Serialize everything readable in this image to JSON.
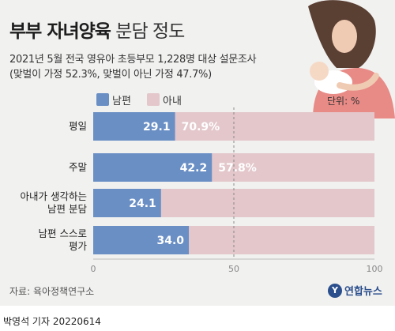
{
  "header": {
    "title_bold": "부부 자녀양육",
    "title_light": "분담 정도",
    "subtitle_line1": "2021년 5월 전국 영유아 초등부모 1,228명 대상 설문조사",
    "subtitle_line2": "(맞벌이 가정 52.3%, 맞벌이 아닌 가정 47.7%)"
  },
  "unit_label": "단위: %",
  "colors": {
    "husband": "#6a8fc5",
    "wife": "#e3c7cb",
    "background": "#f1f1f0"
  },
  "chart_data": {
    "type": "bar",
    "orientation": "horizontal",
    "stacked": true,
    "categories": [
      "평일",
      "주말",
      "아내가 생각하는 남편 분담",
      "남편 스스로 평가"
    ],
    "category_lines": [
      [
        "평일"
      ],
      [
        "주말"
      ],
      [
        "아내가 생각하는",
        "남편 분담"
      ],
      [
        "남편 스스로",
        "평가"
      ]
    ],
    "series": [
      {
        "name": "남편",
        "values": [
          29.1,
          42.2,
          24.1,
          34.0
        ],
        "labels": [
          "29.1",
          "42.2",
          "24.1",
          "34.0"
        ]
      },
      {
        "name": "아내",
        "values": [
          70.9,
          57.8,
          null,
          null
        ],
        "labels": [
          "70.9%",
          "57.8%",
          null,
          null
        ]
      }
    ],
    "xlim": [
      0,
      100
    ],
    "xticks": [
      0,
      50,
      100
    ],
    "reference_line": 50,
    "legend_position": "top-left"
  },
  "source": "자료: 육아정책연구소",
  "logo_text": "연합뉴스",
  "logo_mark": "Y",
  "credit": "박영석 기자 20220614",
  "illustration": "mother-holding-baby"
}
